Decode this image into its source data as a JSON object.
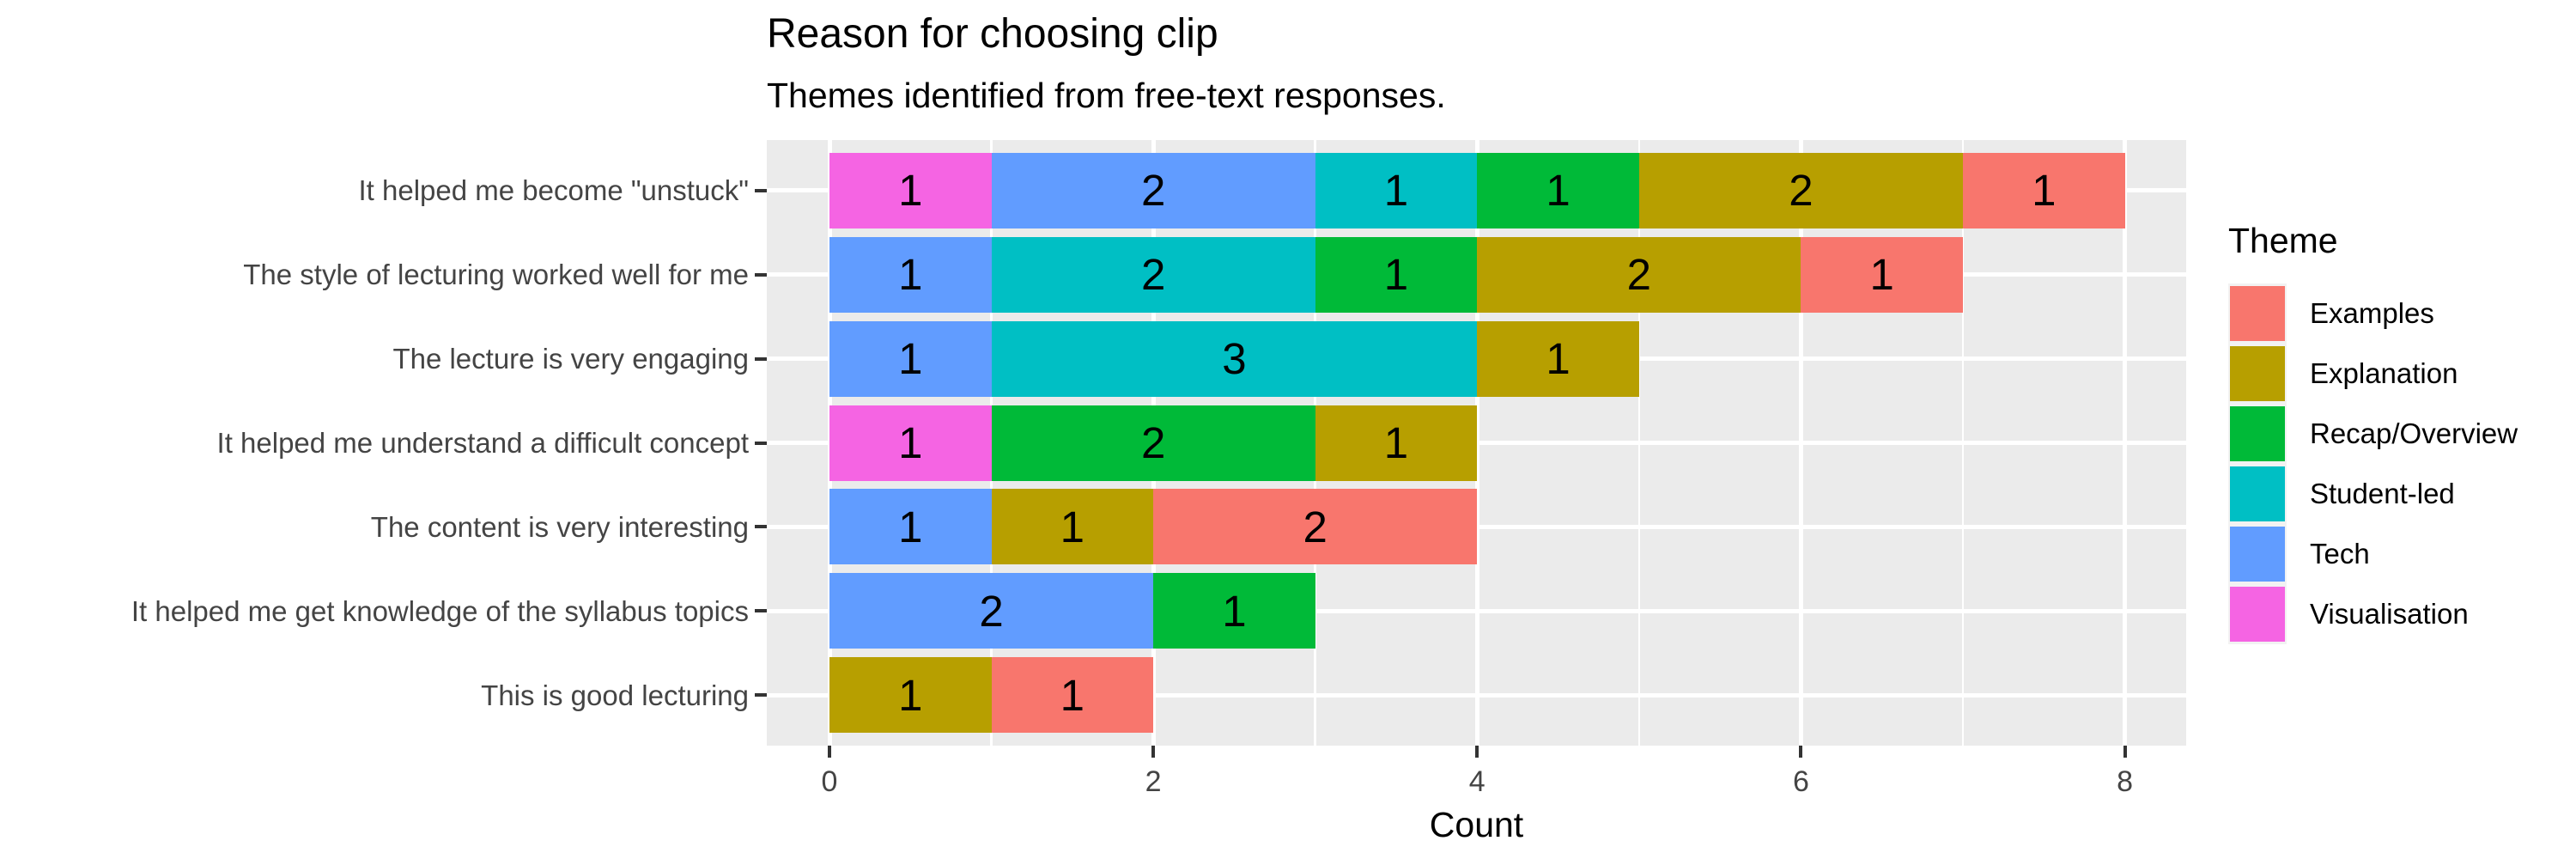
{
  "chart_data": {
    "type": "bar",
    "orientation": "horizontal",
    "stacked": true,
    "title": "Reason for choosing clip",
    "subtitle": "Themes identified from free-text responses.",
    "xlabel": "Count",
    "ylabel": "",
    "x_major_ticks": [
      0,
      2,
      4,
      6,
      8
    ],
    "x_minor_gridlines": [
      1,
      3,
      5,
      7
    ],
    "xlim": [
      -0.4,
      8.4
    ],
    "grid": "on",
    "panel_background": "#EBEBEB",
    "gridline_color": "#ffffff",
    "categories": [
      "It helped me become \"unstuck\"",
      "The style of lecturing worked well for me",
      "The lecture is very engaging",
      "It helped me understand a difficult concept",
      "The content is very interesting",
      "It helped me get knowledge of the syllabus topics",
      "This is good lecturing"
    ],
    "totals": [
      8,
      7,
      5,
      4,
      4,
      3,
      2
    ],
    "series": [
      {
        "name": "Examples",
        "color": "#F8766D",
        "values": [
          1,
          1,
          0,
          0,
          2,
          0,
          1
        ]
      },
      {
        "name": "Explanation",
        "color": "#B79F00",
        "values": [
          2,
          2,
          1,
          1,
          1,
          0,
          1
        ]
      },
      {
        "name": "Recap/Overview",
        "color": "#00BA38",
        "values": [
          1,
          1,
          0,
          2,
          0,
          1,
          0
        ]
      },
      {
        "name": "Student-led",
        "color": "#00BFC4",
        "values": [
          1,
          2,
          3,
          0,
          0,
          0,
          0
        ]
      },
      {
        "name": "Tech",
        "color": "#619CFF",
        "values": [
          2,
          1,
          1,
          0,
          1,
          2,
          0
        ]
      },
      {
        "name": "Visualisation",
        "color": "#F564E3",
        "values": [
          1,
          0,
          0,
          1,
          0,
          0,
          0
        ]
      }
    ],
    "stack_order_left_to_right": [
      "Visualisation",
      "Tech",
      "Student-led",
      "Recap/Overview",
      "Explanation",
      "Examples"
    ],
    "segment_labels_show_values": true,
    "legend": {
      "title": "Theme",
      "position": "right",
      "entries": [
        "Examples",
        "Explanation",
        "Recap/Overview",
        "Student-led",
        "Tech",
        "Visualisation"
      ]
    }
  }
}
